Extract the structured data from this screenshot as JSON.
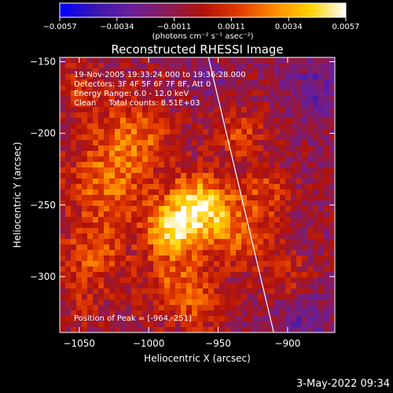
{
  "colorbar": {
    "ticks": [
      "-0.0057",
      "-0.0034",
      "-0.0011",
      "0.0011",
      "0.0034",
      "0.0057"
    ],
    "unit_line": "(photons cm⁻² s⁻¹ asec⁻²)",
    "colors": [
      "#0000ff",
      "#3a16b0",
      "#6a1f9a",
      "#8a1b5a",
      "#b0120a",
      "#e23a00",
      "#ff8a00",
      "#ffd200",
      "#ffffff"
    ]
  },
  "title": "Reconstructed RHESSI Image",
  "info": {
    "time_range": "19-Nov-2005 19:33:24.000 to 19:36:28.000",
    "detectors": "Detectors: 3F 4F 5F 6F 7F 8F, Att 0",
    "energy": "Energy Range: 6.0 - 12.0 keV",
    "clean": "Clean     Total counts: 8.51E+03"
  },
  "peak_label": "Position of Peak = [-964,-251]",
  "timestamp": "3-May-2022 09:34",
  "chart_data": {
    "type": "heatmap",
    "title": "Reconstructed RHESSI Image",
    "xlabel": "Heliocentric X (arcsec)",
    "ylabel": "Heliocentric Y (arcsec)",
    "xlim": [
      -1064,
      -866
    ],
    "ylim": [
      -339,
      -147
    ],
    "xticks": [
      -1050,
      -1000,
      -950,
      -900
    ],
    "yticks": [
      -150,
      -200,
      -250,
      -300
    ],
    "xtick_labels": [
      "−1050",
      "−1000",
      "−950",
      "−900"
    ],
    "ytick_labels": [
      "−150",
      "−200",
      "−250",
      "−300"
    ],
    "value_range": [
      -0.0057,
      0.0057
    ],
    "peak": [
      -964,
      -251
    ],
    "limb_line": [
      [
        -957,
        -147
      ],
      [
        -910,
        -339
      ]
    ],
    "blobs": [
      {
        "x": -964,
        "y": -251,
        "r": 22,
        "v": 0.0057
      },
      {
        "x": -985,
        "y": -268,
        "r": 18,
        "v": 0.0042
      },
      {
        "x": -1030,
        "y": -235,
        "r": 30,
        "v": 0.003
      },
      {
        "x": -1010,
        "y": -200,
        "r": 26,
        "v": 0.0028
      },
      {
        "x": -1040,
        "y": -285,
        "r": 24,
        "v": 0.0024
      },
      {
        "x": -980,
        "y": -305,
        "r": 26,
        "v": 0.0026
      },
      {
        "x": -935,
        "y": -270,
        "r": 24,
        "v": 0.0027
      },
      {
        "x": -935,
        "y": -200,
        "r": 20,
        "v": 0.0022
      },
      {
        "x": -915,
        "y": -240,
        "r": 18,
        "v": 0.002
      },
      {
        "x": -1050,
        "y": -170,
        "r": 22,
        "v": 0.0015
      },
      {
        "x": -900,
        "y": -300,
        "r": 18,
        "v": 0.0016
      },
      {
        "x": -960,
        "y": -325,
        "r": 18,
        "v": 0.0012
      },
      {
        "x": -1050,
        "y": -320,
        "r": 18,
        "v": 0.0012
      },
      {
        "x": -880,
        "y": -170,
        "r": 22,
        "v": -0.0018
      },
      {
        "x": -890,
        "y": -330,
        "r": 20,
        "v": -0.0016
      },
      {
        "x": -955,
        "y": -160,
        "r": 16,
        "v": -0.001
      }
    ]
  }
}
